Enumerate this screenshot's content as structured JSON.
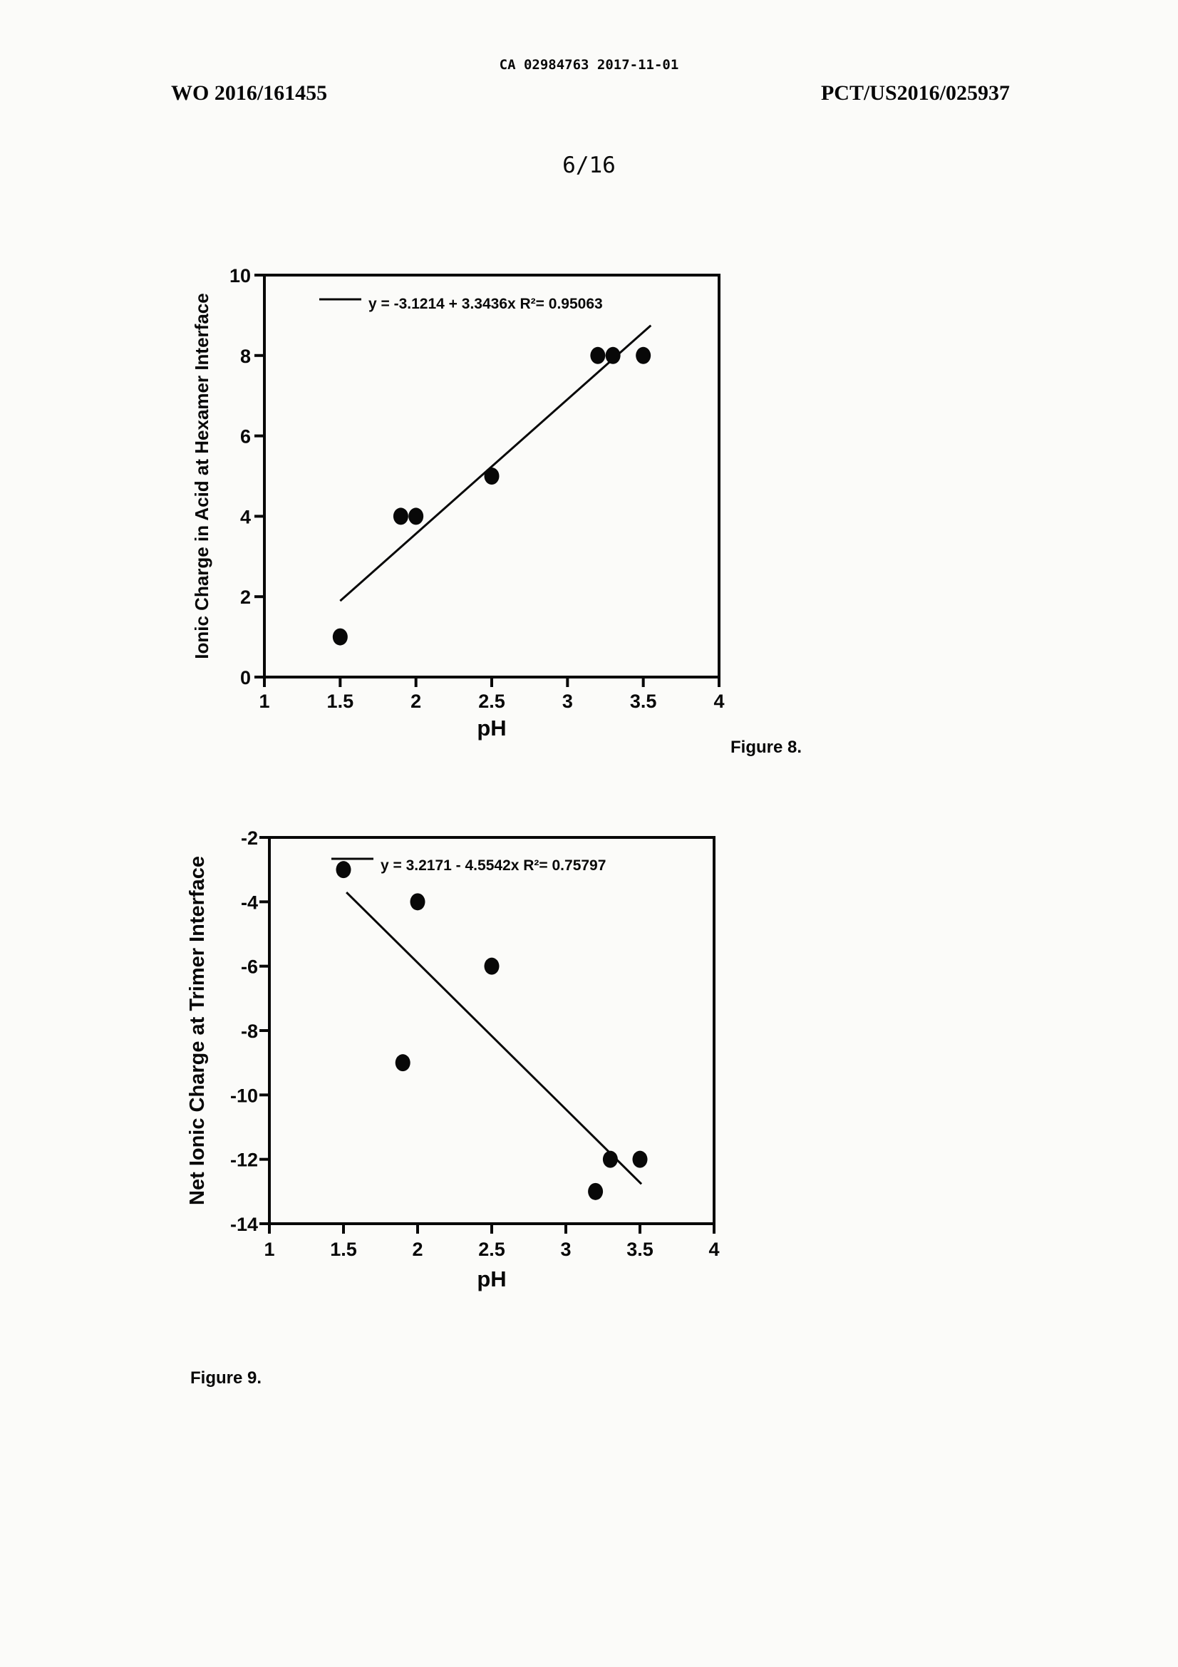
{
  "page": {
    "background": "#fbfbf9",
    "ink": "#080808"
  },
  "header": {
    "stamp": "CA 02984763 2017-11-01",
    "publication_number": "WO 2016/161455",
    "application_number": "PCT/US2016/025937",
    "sheet_number": "6/16"
  },
  "chart_data": [
    {
      "type": "scatter",
      "caption": "Figure 8.",
      "xlabel": "pH",
      "ylabel": "Ionic Charge in Acid at Hexamer Interface",
      "xlim": [
        1,
        4
      ],
      "ylim": [
        0,
        10
      ],
      "xticks": [
        "1",
        "1.5",
        "2",
        "2.5",
        "3",
        "3.5",
        "4"
      ],
      "yticks": [
        "0",
        "2",
        "4",
        "6",
        "8",
        "10"
      ],
      "grid": false,
      "legend_position": "top-left-inside",
      "legend": "y = -3.1214 + 3.3436x   R²= 0.95063",
      "points": [
        [
          1.5,
          1
        ],
        [
          1.9,
          4
        ],
        [
          2,
          4
        ],
        [
          2.5,
          5
        ],
        [
          3.2,
          8
        ],
        [
          3.3,
          8
        ],
        [
          3.5,
          8
        ]
      ],
      "trendline": {
        "equation": "y = -3.1214 + 3.3436x",
        "r_squared": 0.95063,
        "intercept": -3.1214,
        "slope": 3.3436,
        "x_start": 1.5,
        "x_end": 3.55
      }
    },
    {
      "type": "scatter",
      "caption": "Figure 9.",
      "xlabel": "pH",
      "ylabel": "Net Ionic Charge at Trimer Interface",
      "xlim": [
        1,
        4
      ],
      "ylim": [
        -14,
        -2
      ],
      "xticks": [
        "1",
        "1.5",
        "2",
        "2.5",
        "3",
        "3.5",
        "4"
      ],
      "yticks": [
        "-14",
        "-12",
        "-10",
        "-8",
        "-6",
        "-4",
        "-2"
      ],
      "grid": false,
      "legend_position": "top-left-inside",
      "legend": "y = 3.2171 - 4.5542x   R²= 0.75797",
      "points": [
        [
          1.5,
          -3
        ],
        [
          1.9,
          -9
        ],
        [
          2,
          -4
        ],
        [
          2.5,
          -6
        ],
        [
          3.2,
          -13
        ],
        [
          3.3,
          -12
        ],
        [
          3.5,
          -12
        ]
      ],
      "trendline": {
        "equation": "y = 3.2171 - 4.5542x",
        "r_squared": 0.75797,
        "intercept": 3.2171,
        "slope": -4.5542,
        "x_start": 1.52,
        "x_end": 3.51
      }
    }
  ]
}
